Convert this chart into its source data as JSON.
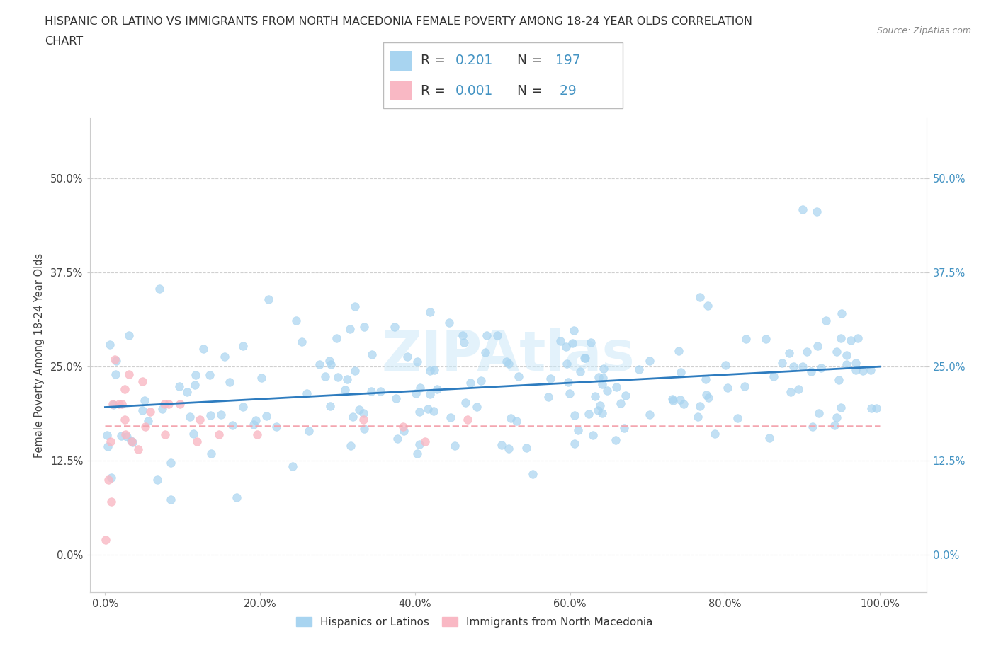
{
  "title_line1": "HISPANIC OR LATINO VS IMMIGRANTS FROM NORTH MACEDONIA FEMALE POVERTY AMONG 18-24 YEAR OLDS CORRELATION",
  "title_line2": "CHART",
  "source": "Source: ZipAtlas.com",
  "ylabel": "Female Poverty Among 18-24 Year Olds",
  "x_tick_vals": [
    0,
    20,
    40,
    60,
    80,
    100
  ],
  "y_tick_vals": [
    0,
    12.5,
    25,
    37.5,
    50
  ],
  "xlim": [
    -2,
    106
  ],
  "ylim": [
    -5,
    58
  ],
  "blue_scatter_color": "#a8d4f0",
  "pink_scatter_color": "#f9b8c4",
  "trendline_blue": "#2e7cbf",
  "trendline_pink": "#f4a6b0",
  "R_blue": 0.201,
  "N_blue": 197,
  "R_pink": 0.001,
  "N_pink": 29,
  "legend_label_blue": "Hispanics or Latinos",
  "legend_label_pink": "Immigrants from North Macedonia",
  "watermark": "ZIPAtlas",
  "right_axis_color": "#4393c3",
  "seed_blue": 12,
  "seed_pink": 7
}
